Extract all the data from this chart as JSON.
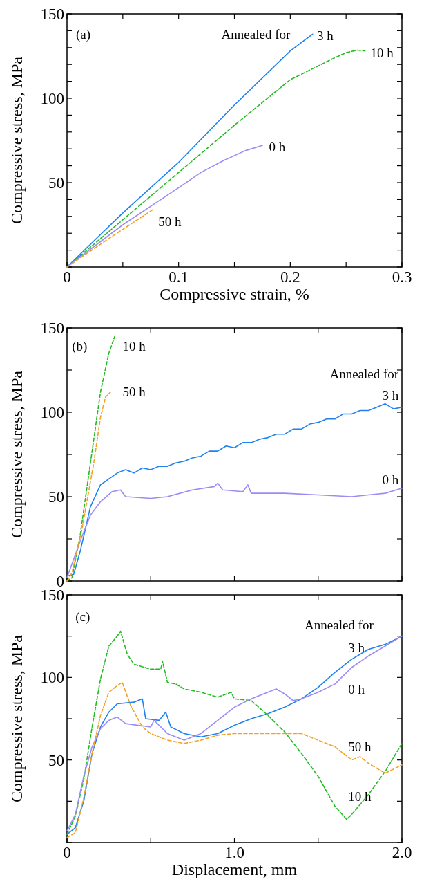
{
  "chart_data": [
    {
      "type": "line",
      "xlabel": "Compressive strain, %",
      "ylabel": "Compressive stress, MPa",
      "xlim": [
        0,
        0.3
      ],
      "ylim": [
        0,
        150
      ],
      "xticks": [
        0,
        {
          "value": 0.05,
          "label": null
        },
        0.1,
        {
          "value": 0.15,
          "label": null
        },
        0.2,
        {
          "value": 0.25,
          "label": null
        },
        0.3
      ],
      "yticks": [
        {
          "value": 0,
          "label": null
        },
        {
          "value": 10,
          "label": null
        },
        {
          "value": 20,
          "label": null
        },
        {
          "value": 30,
          "label": null
        },
        {
          "value": 40,
          "label": null
        },
        50,
        {
          "value": 60,
          "label": null
        },
        {
          "value": 70,
          "label": null
        },
        {
          "value": 80,
          "label": null
        },
        {
          "value": 90,
          "label": null
        },
        100,
        {
          "value": 110,
          "label": null
        },
        {
          "value": 120,
          "label": null
        },
        {
          "value": 130,
          "label": null
        },
        {
          "value": 140,
          "label": null
        },
        150
      ],
      "annotations": [
        "(a)",
        "Annealed for"
      ],
      "series": [
        {
          "name": "3 h",
          "color": "#1e82f0",
          "line_style": "solid",
          "x": [
            0,
            0.05,
            0.1,
            0.15,
            0.2,
            0.21,
            0.22
          ],
          "values": [
            0,
            32,
            62,
            96,
            128,
            133,
            138
          ]
        },
        {
          "name": "10 h",
          "color": "#22bb22",
          "line_style": "dashed",
          "x": [
            0,
            0.05,
            0.1,
            0.15,
            0.2,
            0.24,
            0.25,
            0.26,
            0.267
          ],
          "values": [
            0,
            28,
            56,
            84,
            111,
            124,
            127,
            128.5,
            128
          ]
        },
        {
          "name": "0 h",
          "color": "#9a8cf5",
          "line_style": "solid",
          "x": [
            0,
            0.05,
            0.1,
            0.12,
            0.14,
            0.16,
            0.175
          ],
          "values": [
            0,
            25,
            47,
            56,
            63,
            69,
            72
          ]
        },
        {
          "name": "50 h",
          "color": "#f5a020",
          "line_style": "dashed",
          "x": [
            0,
            0.04,
            0.077
          ],
          "values": [
            0,
            18,
            34
          ]
        }
      ]
    },
    {
      "type": "line",
      "ylabel": "Compressive stress, MPa",
      "xlim": [
        0,
        2
      ],
      "ylim": [
        0,
        150
      ],
      "tick_labels": "y",
      "xticks": [
        0,
        0.5,
        1,
        1.5,
        2
      ],
      "yticks": [
        0,
        {
          "value": 25,
          "label": null
        },
        50,
        {
          "value": 75,
          "label": null
        },
        100,
        {
          "value": 125,
          "label": null
        },
        150
      ],
      "annotations": [
        "(b)",
        "Annealed for"
      ],
      "series": [
        {
          "name": "3 h",
          "color": "#1e82f0",
          "line_style": "solid",
          "x": [
            0,
            0.04,
            0.08,
            0.14,
            0.2,
            0.3,
            0.35,
            0.4,
            0.45,
            0.5,
            0.55,
            0.6,
            0.65,
            0.7,
            0.75,
            0.8,
            0.85,
            0.9,
            0.95,
            1.0,
            1.05,
            1.1,
            1.15,
            1.2,
            1.25,
            1.3,
            1.35,
            1.4,
            1.45,
            1.5,
            1.55,
            1.6,
            1.65,
            1.7,
            1.75,
            1.8,
            1.85,
            1.9,
            1.95,
            2.0
          ],
          "values": [
            3,
            4,
            18,
            44,
            57,
            64,
            66,
            64,
            67,
            66,
            68,
            68,
            70,
            71,
            73,
            74,
            77,
            77,
            80,
            79,
            82,
            82,
            84,
            85,
            87,
            87,
            90,
            90,
            93,
            94,
            96,
            96,
            99,
            99,
            101,
            101,
            103,
            105,
            102,
            103
          ]
        },
        {
          "name": "10 h",
          "color": "#22bb22",
          "line_style": "dashed",
          "x": [
            0,
            0.03,
            0.08,
            0.14,
            0.2,
            0.25,
            0.285
          ],
          "values": [
            0,
            2,
            28,
            70,
            112,
            135,
            145
          ]
        },
        {
          "name": "0 h",
          "color": "#9a8cf5",
          "line_style": "solid",
          "x": [
            0,
            0.08,
            0.14,
            0.2,
            0.27,
            0.32,
            0.35,
            0.5,
            0.6,
            0.75,
            0.88,
            0.9,
            0.93,
            1.05,
            1.08,
            1.1,
            1.3,
            1.5,
            1.7,
            1.8,
            1.9,
            2.0
          ],
          "values": [
            2,
            24,
            39,
            47,
            53,
            54,
            50,
            49,
            50,
            54,
            56,
            58,
            54,
            53,
            57,
            52,
            52,
            51,
            50,
            51,
            52,
            55
          ]
        },
        {
          "name": "50 h",
          "color": "#f5a020",
          "line_style": "dashed",
          "x": [
            0,
            0.03,
            0.09,
            0.16,
            0.2,
            0.23,
            0.26
          ],
          "values": [
            0,
            5,
            31,
            70,
            97,
            109,
            112
          ]
        }
      ]
    },
    {
      "type": "line",
      "xlabel": "Displacement, mm",
      "ylabel": "Compressive stress, MPa",
      "xlim": [
        0,
        2
      ],
      "ylim": [
        0,
        150
      ],
      "xticks": [
        0,
        {
          "value": 0.5,
          "label": null
        },
        {
          "value": 1,
          "label": "1.0"
        },
        {
          "value": 1.5,
          "label": null
        },
        {
          "value": 2,
          "label": "2.0"
        }
      ],
      "yticks": [
        {
          "value": 0,
          "label": null
        },
        {
          "value": 25,
          "label": null
        },
        50,
        {
          "value": 75,
          "label": null
        },
        100,
        {
          "value": 125,
          "label": null
        },
        150
      ],
      "annotations": [
        "(c)",
        "Annealed for"
      ],
      "series": [
        {
          "name": "3 h",
          "color": "#1e82f0",
          "line_style": "solid",
          "x": [
            0,
            0.05,
            0.1,
            0.15,
            0.2,
            0.25,
            0.3,
            0.4,
            0.45,
            0.47,
            0.55,
            0.59,
            0.62,
            0.7,
            0.8,
            0.9,
            1.0,
            1.1,
            1.2,
            1.3,
            1.4,
            1.5,
            1.6,
            1.7,
            1.8,
            1.9,
            2.0
          ],
          "values": [
            5,
            9,
            25,
            54,
            70,
            79,
            84,
            85,
            87,
            75,
            74,
            79,
            70,
            66,
            64,
            66,
            71,
            75,
            78,
            82,
            87,
            94,
            103,
            111,
            117,
            120,
            125
          ]
        },
        {
          "name": "10 h",
          "color": "#22bb22",
          "line_style": "dashed",
          "x": [
            0,
            0.05,
            0.1,
            0.15,
            0.2,
            0.25,
            0.3,
            0.32,
            0.36,
            0.4,
            0.5,
            0.56,
            0.57,
            0.6,
            0.65,
            0.7,
            0.8,
            0.9,
            0.98,
            1.0,
            1.1,
            1.2,
            1.3,
            1.4,
            1.5,
            1.6,
            1.67,
            1.7,
            1.8,
            1.9,
            2.0
          ],
          "values": [
            5,
            16,
            38,
            70,
            99,
            119,
            125,
            128,
            114,
            108,
            105,
            105,
            110,
            97,
            96,
            93,
            91,
            88,
            91,
            87,
            86,
            77,
            67,
            54,
            40,
            22,
            14,
            17,
            29,
            43,
            60
          ]
        },
        {
          "name": "0 h",
          "color": "#9a8cf5",
          "line_style": "solid",
          "x": [
            0,
            0.05,
            0.1,
            0.15,
            0.2,
            0.25,
            0.3,
            0.35,
            0.5,
            0.52,
            0.6,
            0.7,
            0.8,
            0.9,
            1.0,
            1.1,
            1.2,
            1.25,
            1.3,
            1.35,
            1.4,
            1.5,
            1.6,
            1.7,
            1.8,
            1.9,
            2.0
          ],
          "values": [
            7,
            17,
            40,
            58,
            69,
            74,
            76,
            72,
            70,
            74,
            66,
            62,
            66,
            74,
            82,
            87,
            91,
            93,
            90,
            86,
            87,
            91,
            96,
            106,
            113,
            119,
            125
          ]
        },
        {
          "name": "50 h",
          "color": "#f5a020",
          "line_style": "dashed",
          "x": [
            0,
            0.05,
            0.1,
            0.15,
            0.2,
            0.25,
            0.3,
            0.33,
            0.38,
            0.45,
            0.5,
            0.6,
            0.7,
            0.8,
            0.9,
            1.0,
            1.2,
            1.4,
            1.5,
            1.6,
            1.7,
            1.75,
            1.8,
            1.9,
            2.0
          ],
          "values": [
            3,
            6,
            27,
            54,
            77,
            91,
            95,
            97,
            83,
            70,
            66,
            62,
            60,
            62,
            65,
            66,
            66,
            66,
            62,
            58,
            50,
            52,
            48,
            42,
            47
          ]
        }
      ]
    }
  ]
}
